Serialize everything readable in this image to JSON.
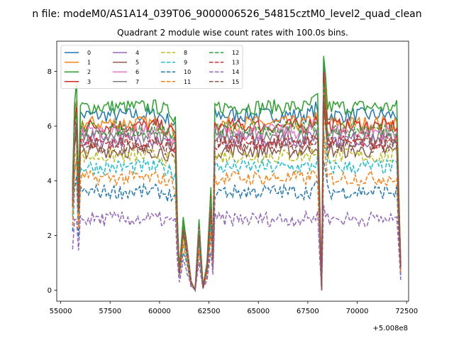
{
  "figure": {
    "suptitle": "n file: modeM0/AS1A14_039T06_9000006526_54815cztM0_level2_quad_clean",
    "offset_text": "+5.008e8"
  },
  "chart_data": {
    "type": "line",
    "title": "Quadrant 2 module wise count rates with 100.0s bins.",
    "xlabel": "",
    "ylabel": "",
    "x_offset": 500800000,
    "xlim": [
      54800,
      72600
    ],
    "ylim": [
      -0.4,
      9.1
    ],
    "xticks": [
      55000,
      57500,
      60000,
      62500,
      65000,
      67500,
      70000,
      72500
    ],
    "xtick_labels": [
      "55000",
      "57500",
      "60000",
      "62500",
      "65000",
      "67500",
      "70000",
      "72500"
    ],
    "yticks": [
      0,
      2,
      4,
      6,
      8
    ],
    "ytick_labels": [
      "0",
      "2",
      "4",
      "6",
      "8"
    ],
    "grid": false,
    "legend": {
      "placement": "top-left",
      "columns": 4
    },
    "series": [
      {
        "name": "0",
        "color": "#1f77b4",
        "dash": "solid",
        "level": 6.4
      },
      {
        "name": "1",
        "color": "#ff7f0e",
        "dash": "solid",
        "level": 6.1
      },
      {
        "name": "2",
        "color": "#2ca02c",
        "dash": "solid",
        "level": 6.7
      },
      {
        "name": "3",
        "color": "#d62728",
        "dash": "solid",
        "level": 6.0
      },
      {
        "name": "4",
        "color": "#9467bd",
        "dash": "solid",
        "level": 5.5
      },
      {
        "name": "5",
        "color": "#8c564b",
        "dash": "solid",
        "level": 5.1
      },
      {
        "name": "6",
        "color": "#e377c2",
        "dash": "solid",
        "level": 5.8
      },
      {
        "name": "7",
        "color": "#7f7f7f",
        "dash": "solid",
        "level": 5.6
      },
      {
        "name": "8",
        "color": "#bcbd22",
        "dash": "dashed",
        "level": 4.9
      },
      {
        "name": "9",
        "color": "#17becf",
        "dash": "dashed",
        "level": 4.5
      },
      {
        "name": "10",
        "color": "#1f77b4",
        "dash": "dashed",
        "level": 3.6
      },
      {
        "name": "11",
        "color": "#ff7f0e",
        "dash": "dashed",
        "level": 4.1
      },
      {
        "name": "12",
        "color": "#2ca02c",
        "dash": "dashed",
        "level": 5.9
      },
      {
        "name": "13",
        "color": "#d62728",
        "dash": "dashed",
        "level": 5.4
      },
      {
        "name": "14",
        "color": "#9467bd",
        "dash": "dashed",
        "level": 2.6
      },
      {
        "name": "15",
        "color": "#8c564b",
        "dash": "dashed",
        "level": 5.3
      }
    ],
    "time_profile": {
      "x": [
        55600,
        55700,
        55800,
        55900,
        56000,
        57500,
        60000,
        60800,
        60900,
        61000,
        61200,
        61400,
        61600,
        61800,
        62000,
        62200,
        62400,
        62600,
        62700,
        62800,
        63000,
        65000,
        67500,
        68000,
        68100,
        68200,
        68300,
        68500,
        70000,
        72000,
        72100,
        72200
      ],
      "rel": [
        0.6,
        1.0,
        1.1,
        0.55,
        1.0,
        1.0,
        1.0,
        0.95,
        0.4,
        0.12,
        0.4,
        0.25,
        0.05,
        0.0,
        0.38,
        0.02,
        0.15,
        0.55,
        0.2,
        1.0,
        1.0,
        1.0,
        1.0,
        1.05,
        0.5,
        0.0,
        1.3,
        1.0,
        1.0,
        1.0,
        0.55,
        0.15
      ]
    }
  }
}
